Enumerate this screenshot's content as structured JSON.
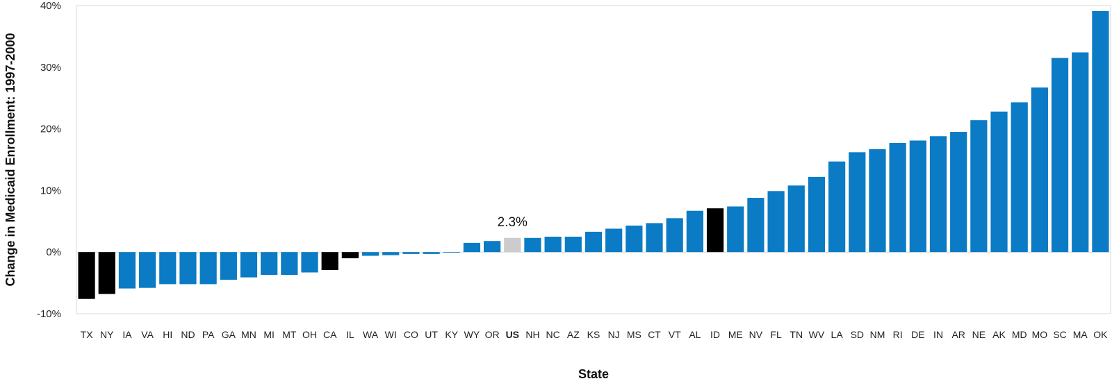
{
  "chart_data": {
    "type": "bar",
    "xlabel": "State",
    "ylabel": "Change in Medicaid Enrollment: 1997-2000",
    "ylim": [
      -10,
      40
    ],
    "yticks": [
      -10,
      0,
      10,
      20,
      30,
      40
    ],
    "ytick_labels": [
      "-10%",
      "0%",
      "10%",
      "20%",
      "30%",
      "40%"
    ],
    "grid": false,
    "categories": [
      "TX",
      "NY",
      "IA",
      "VA",
      "HI",
      "ND",
      "PA",
      "GA",
      "MN",
      "MI",
      "MT",
      "OH",
      "CA",
      "IL",
      "WA",
      "WI",
      "CO",
      "UT",
      "KY",
      "WY",
      "OR",
      "US",
      "NH",
      "NC",
      "AZ",
      "KS",
      "NJ",
      "MS",
      "CT",
      "VT",
      "AL",
      "ID",
      "ME",
      "NV",
      "FL",
      "TN",
      "WV",
      "LA",
      "SD",
      "NM",
      "RI",
      "DE",
      "IN",
      "AR",
      "NE",
      "AK",
      "MD",
      "MO",
      "SC",
      "MA",
      "OK"
    ],
    "values": [
      -7.6,
      -6.8,
      -5.9,
      -5.8,
      -5.2,
      -5.2,
      -5.2,
      -4.5,
      -4.1,
      -3.7,
      -3.7,
      -3.3,
      -2.9,
      -1.0,
      -0.6,
      -0.5,
      -0.3,
      -0.3,
      -0.1,
      1.5,
      1.8,
      2.3,
      2.3,
      2.5,
      2.5,
      3.3,
      3.8,
      4.3,
      4.7,
      5.5,
      6.7,
      7.1,
      7.4,
      8.8,
      9.9,
      10.8,
      12.2,
      14.7,
      16.2,
      16.7,
      17.7,
      18.1,
      18.8,
      19.5,
      21.4,
      22.8,
      24.3,
      26.7,
      31.5,
      32.4,
      39.1
    ],
    "highlighted_black": [
      "TX",
      "NY",
      "CA",
      "IL",
      "ID"
    ],
    "reference_category": "US",
    "annotation": "2.3%",
    "colors": {
      "default": "#0a7bc4",
      "highlight": "#000000",
      "reference": "#cccccc",
      "frame": "#d9d9d9"
    }
  }
}
